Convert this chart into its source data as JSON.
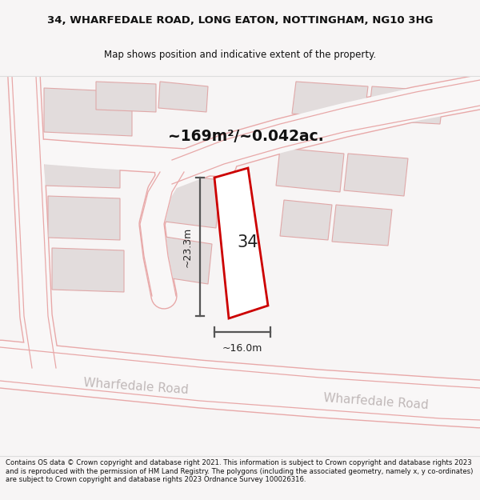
{
  "title_line1": "34, WHARFEDALE ROAD, LONG EATON, NOTTINGHAM, NG10 3HG",
  "title_line2": "Map shows position and indicative extent of the property.",
  "area_label": "~169m²/~0.042ac.",
  "property_number": "34",
  "dim_width": "~16.0m",
  "dim_height": "~23.3m",
  "road_label1": "Wharfedale Road",
  "road_label2": "Wharfedale Road",
  "footer": "Contains OS data © Crown copyright and database right 2021. This information is subject to Crown copyright and database rights 2023 and is reproduced with the permission of HM Land Registry. The polygons (including the associated geometry, namely x, y co-ordinates) are subject to Crown copyright and database rights 2023 Ordnance Survey 100026316.",
  "bg_color": "#f7f5f5",
  "map_bg": "#f9f7f7",
  "building_color": "#e2dcdc",
  "building_edge": "#e8a8a8",
  "road_fill": "#f9f7f7",
  "road_edge_color": "#e8a8a8",
  "plot_fill": "#ffffff",
  "plot_edge": "#cc0000",
  "dim_line_color": "#555555",
  "title_color": "#111111",
  "road_text_color": "#c0b8b8",
  "footer_color": "#111111"
}
